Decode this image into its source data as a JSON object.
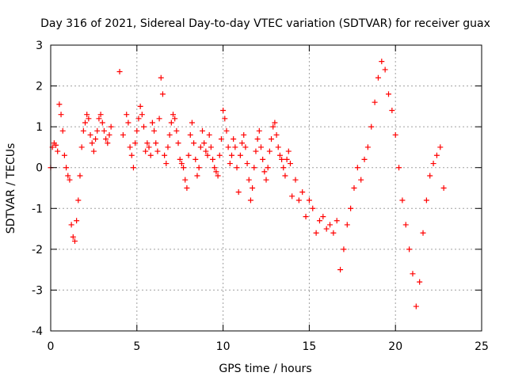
{
  "chart_data": {
    "type": "scatter",
    "title": "Day 316 of 2021, Sidereal Day-to-day VTEC variation (SDTVAR) for receiver guax",
    "xlabel": "GPS time / hours",
    "ylabel": "SDTVAR / TECUs",
    "xlim": [
      0,
      25
    ],
    "ylim": [
      -4,
      3
    ],
    "xticks": [
      0,
      5,
      10,
      15,
      20,
      25
    ],
    "yticks": [
      -4,
      -3,
      -2,
      -1,
      0,
      1,
      2,
      3
    ],
    "grid": true,
    "marker": "+",
    "color": "#ff0000",
    "series": [
      {
        "name": "SDTVAR",
        "x": [
          0.0,
          0.1,
          0.2,
          0.3,
          0.4,
          0.5,
          0.6,
          0.7,
          0.8,
          0.9,
          1.0,
          1.1,
          1.2,
          1.3,
          1.4,
          1.5,
          1.6,
          1.7,
          1.8,
          1.9,
          2.0,
          2.1,
          2.2,
          2.3,
          2.4,
          2.5,
          2.6,
          2.7,
          2.8,
          2.9,
          3.0,
          3.1,
          3.2,
          3.3,
          3.4,
          3.5,
          4.0,
          4.2,
          4.4,
          4.5,
          4.6,
          4.7,
          4.8,
          4.9,
          5.0,
          5.1,
          5.2,
          5.3,
          5.4,
          5.5,
          5.6,
          5.7,
          5.8,
          5.9,
          6.0,
          6.1,
          6.2,
          6.3,
          6.4,
          6.5,
          6.6,
          6.7,
          6.8,
          6.9,
          7.0,
          7.1,
          7.2,
          7.3,
          7.4,
          7.5,
          7.6,
          7.7,
          7.8,
          7.9,
          8.0,
          8.1,
          8.2,
          8.3,
          8.4,
          8.5,
          8.6,
          8.7,
          8.8,
          8.9,
          9.0,
          9.1,
          9.2,
          9.3,
          9.4,
          9.5,
          9.6,
          9.7,
          9.8,
          9.9,
          10.0,
          10.1,
          10.2,
          10.3,
          10.4,
          10.5,
          10.6,
          10.7,
          10.8,
          10.9,
          11.0,
          11.1,
          11.2,
          11.3,
          11.4,
          11.5,
          11.6,
          11.7,
          11.8,
          11.9,
          12.0,
          12.1,
          12.2,
          12.3,
          12.4,
          12.5,
          12.6,
          12.7,
          12.8,
          12.9,
          13.0,
          13.1,
          13.2,
          13.3,
          13.4,
          13.5,
          13.6,
          13.7,
          13.8,
          13.9,
          14.0,
          14.2,
          14.4,
          14.6,
          14.8,
          15.0,
          15.2,
          15.4,
          15.6,
          15.8,
          16.0,
          16.2,
          16.4,
          16.6,
          16.8,
          17.0,
          17.2,
          17.4,
          17.6,
          17.8,
          18.0,
          18.2,
          18.4,
          18.6,
          18.8,
          19.0,
          19.2,
          19.4,
          19.6,
          19.8,
          20.0,
          20.2,
          20.4,
          20.6,
          20.8,
          21.0,
          21.2,
          21.4,
          21.6,
          21.8,
          22.0,
          22.2,
          22.4,
          22.6,
          22.8
        ],
        "y": [
          0.0,
          0.5,
          0.6,
          0.55,
          0.4,
          1.55,
          1.3,
          0.9,
          0.3,
          0.0,
          -0.2,
          -0.3,
          -1.4,
          -1.7,
          -1.8,
          -1.3,
          -0.8,
          -0.2,
          0.5,
          0.9,
          1.1,
          1.3,
          1.2,
          0.8,
          0.6,
          0.4,
          0.7,
          0.9,
          1.2,
          1.3,
          1.1,
          0.9,
          0.7,
          0.6,
          0.8,
          1.0,
          2.35,
          0.8,
          1.3,
          1.1,
          0.5,
          0.3,
          0.0,
          0.6,
          0.9,
          1.2,
          1.5,
          1.3,
          1.0,
          0.4,
          0.6,
          0.5,
          0.3,
          1.1,
          0.9,
          0.6,
          0.4,
          1.2,
          2.2,
          1.8,
          0.3,
          0.1,
          0.5,
          0.8,
          1.1,
          1.3,
          1.2,
          0.9,
          0.6,
          0.2,
          0.1,
          0.0,
          -0.3,
          -0.5,
          0.3,
          0.8,
          1.1,
          0.6,
          0.2,
          -0.2,
          0.0,
          0.5,
          0.9,
          0.6,
          0.4,
          0.3,
          0.8,
          0.5,
          0.2,
          0.0,
          -0.1,
          -0.2,
          0.3,
          0.7,
          1.4,
          1.2,
          0.9,
          0.5,
          0.1,
          0.3,
          0.7,
          0.5,
          0.0,
          -0.6,
          0.3,
          0.6,
          0.8,
          0.5,
          0.1,
          -0.3,
          -0.8,
          -0.5,
          0.0,
          0.4,
          0.7,
          0.9,
          0.5,
          0.2,
          -0.1,
          -0.3,
          0.0,
          0.4,
          0.7,
          1.0,
          1.1,
          0.8,
          0.5,
          0.3,
          0.2,
          0.0,
          -0.2,
          0.2,
          0.4,
          0.1,
          -0.7,
          -0.3,
          -0.8,
          -0.6,
          -1.2,
          -0.8,
          -1.0,
          -1.6,
          -1.3,
          -1.2,
          -1.5,
          -1.4,
          -1.6,
          -1.3,
          -2.5,
          -2.0,
          -1.4,
          -1.0,
          -0.5,
          0.0,
          -0.3,
          0.2,
          0.5,
          1.0,
          1.6,
          2.2,
          2.6,
          2.4,
          1.8,
          1.4,
          0.8,
          0.0,
          -0.8,
          -1.4,
          -2.0,
          -2.6,
          -3.4,
          -2.8,
          -1.6,
          -0.8,
          -0.2,
          0.1,
          0.3,
          0.5,
          -0.5
        ]
      }
    ]
  }
}
